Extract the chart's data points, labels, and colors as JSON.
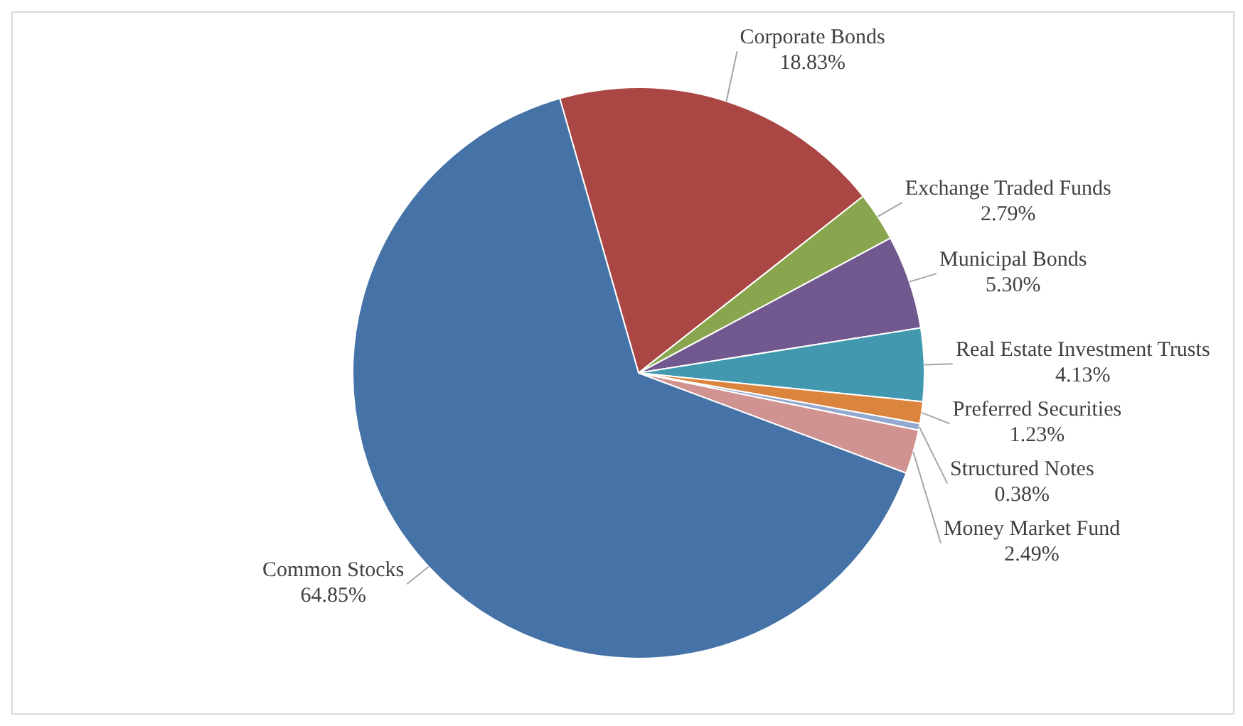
{
  "chart_data": {
    "type": "pie",
    "categories": [
      "Corporate Bonds",
      "Exchange Traded Funds",
      "Municipal Bonds",
      "Real Estate Investment Trusts",
      "Preferred Securities",
      "Structured Notes",
      "Money Market Fund",
      "Common Stocks"
    ],
    "values": [
      18.83,
      2.79,
      5.3,
      4.13,
      1.23,
      0.38,
      2.49,
      64.85
    ],
    "value_labels": [
      "18.83%",
      "2.79%",
      "5.30%",
      "4.13%",
      "1.23%",
      "0.38%",
      "2.49%",
      "64.85%"
    ],
    "colors": [
      "#aa4643",
      "#89a54e",
      "#71588f",
      "#4198af",
      "#db843d",
      "#93a9cf",
      "#d19392",
      "#4572a7"
    ],
    "legend": false
  }
}
